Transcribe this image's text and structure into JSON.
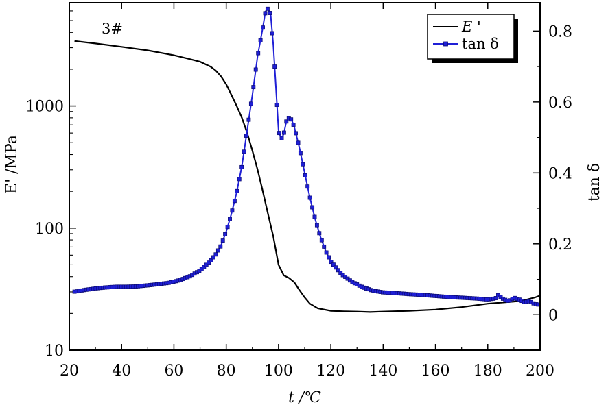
{
  "chart_data": {
    "type": "line",
    "annotation": "3#",
    "xlabel": "t /℃",
    "ylabel_left": "E' /MPa",
    "ylabel_right": "tan δ",
    "x_range": [
      20,
      200
    ],
    "y_left_range": [
      10,
      7000
    ],
    "y_left_scale": "log",
    "y_right_range": [
      -0.1,
      0.88
    ],
    "x_ticks": [
      "20",
      "40",
      "60",
      "80",
      "100",
      "120",
      "140",
      "160",
      "180",
      "200"
    ],
    "y_left_ticks": [
      "10",
      "100",
      "1000"
    ],
    "y_right_ticks": [
      "0",
      "0.2",
      "0.4",
      "0.6",
      "0.8"
    ],
    "legend_position": "top-right",
    "legend": [
      "E '",
      "tan δ"
    ],
    "colors": {
      "storage_modulus": "#000000",
      "tan_delta": "#1f1fd6",
      "tan_delta_edge": "#0a0a70"
    },
    "series": [
      {
        "name": "E '",
        "axis": "left",
        "x": [
          22,
          30,
          40,
          50,
          60,
          65,
          70,
          74,
          76,
          78,
          80,
          82,
          84,
          86,
          88,
          90,
          92,
          94,
          96,
          98,
          100,
          102,
          104,
          106,
          108,
          110,
          112,
          115,
          120,
          125,
          130,
          135,
          140,
          150,
          160,
          170,
          180,
          190,
          195,
          198,
          200
        ],
        "values": [
          3400,
          3250,
          3050,
          2850,
          2600,
          2450,
          2300,
          2100,
          1950,
          1750,
          1500,
          1230,
          1000,
          800,
          600,
          430,
          300,
          200,
          130,
          85,
          50,
          41,
          39,
          36,
          31,
          27,
          24,
          22,
          21,
          20.8,
          20.7,
          20.5,
          20.7,
          21,
          21.5,
          22.5,
          24,
          25,
          26,
          27,
          28
        ]
      },
      {
        "name": "tan δ",
        "axis": "right",
        "x": [
          22,
          26,
          30,
          34,
          38,
          42,
          46,
          50,
          54,
          58,
          62,
          66,
          70,
          72,
          74,
          76,
          78,
          80,
          82,
          84,
          86,
          88,
          90,
          92,
          94,
          95,
          96,
          97,
          98,
          99,
          100,
          101,
          102,
          103,
          104,
          105,
          106,
          108,
          110,
          112,
          114,
          116,
          118,
          120,
          124,
          128,
          132,
          136,
          140,
          145,
          150,
          155,
          160,
          165,
          170,
          175,
          180,
          183,
          184,
          186,
          188,
          190,
          192,
          194,
          196,
          198,
          200
        ],
        "values": [
          0.065,
          0.07,
          0.074,
          0.077,
          0.079,
          0.079,
          0.08,
          0.083,
          0.086,
          0.09,
          0.097,
          0.108,
          0.125,
          0.138,
          0.152,
          0.17,
          0.195,
          0.235,
          0.285,
          0.345,
          0.42,
          0.52,
          0.62,
          0.73,
          0.81,
          0.855,
          0.865,
          0.845,
          0.76,
          0.64,
          0.52,
          0.495,
          0.51,
          0.545,
          0.555,
          0.55,
          0.53,
          0.47,
          0.4,
          0.33,
          0.27,
          0.22,
          0.18,
          0.15,
          0.115,
          0.093,
          0.078,
          0.068,
          0.063,
          0.061,
          0.058,
          0.056,
          0.053,
          0.05,
          0.048,
          0.046,
          0.043,
          0.046,
          0.055,
          0.044,
          0.038,
          0.048,
          0.043,
          0.035,
          0.038,
          0.03,
          0.028
        ]
      }
    ]
  }
}
